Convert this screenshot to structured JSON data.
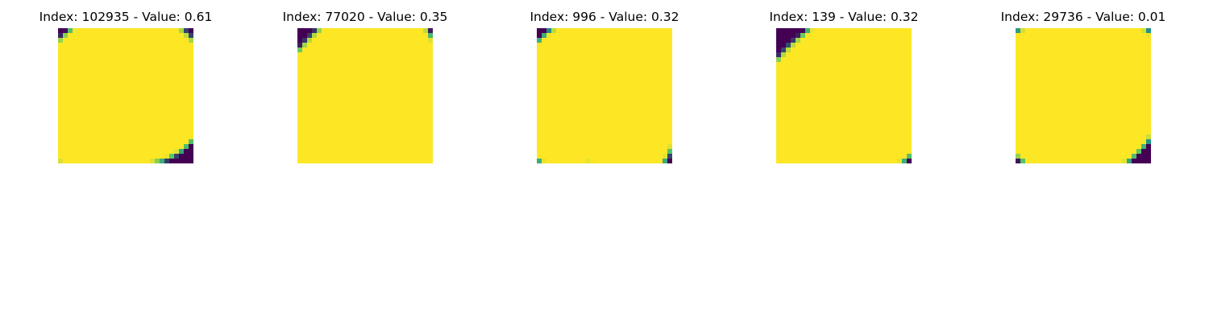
{
  "panels": [
    {
      "title": "Index: 102935 - Value: 0.61",
      "strokes": [
        "M7.5,22 C5,20 4,15 5,12 C7,7 11,6 15,6 C19,6 22,8 22,13 C22,17 20,19 16,19 L13,19 L12,15 L13,12",
        "M13,13 L13.8,19.4 L16.5,19.2"
      ]
    },
    {
      "title": "Index: 77020 - Value: 0.35",
      "strokes": [
        "M18,5 C14,4 10,7 7,11 C4,15 3,19 4,21 C6,23 13,22 17,19 C19,16 20,12 20,9 C20,6 19,4.5 17,5",
        "M13,14 C16,17 19,19 22.5,22"
      ]
    },
    {
      "title": "Index: 996 - Value: 0.32",
      "strokes": [
        "M6,20 C4,18 4,16 5,13 C6,10 8,7 10,8 C12,9 13,12 15,16 C17,20 18,23 19,22 C21,18 21,13 21,9 C21,7 21,5 20,4"
      ]
    },
    {
      "title": "Index: 139 - Value: 0.32",
      "strokes": [
        "M5.5,19 C3,21 4.5,23 9,23 C14,23 17,21 20,17 C23,13 24,8 23,5 C21,3 16,5 12,8 C8,11 5,15 4,18",
        "M9,13 C11,12 14,12 16,13 C18,15 20,18 21,20"
      ]
    },
    {
      "title": "Index: 29736 - Value: 0.01",
      "strokes": [
        "M7.5,20.5 C5,19 3,15 4,11 C5,8 7,7 11,7 L19,7 C22,7 23,9 22,13 C21,17 19,20 16,21 L14,21 L13.5,17 L13.8,13",
        "M13.5,13 L14,21.6"
      ]
    }
  ],
  "colormap": {
    "background": "#440154",
    "low": "#21918c",
    "mid": "#5ec962",
    "high": "#fde725"
  }
}
